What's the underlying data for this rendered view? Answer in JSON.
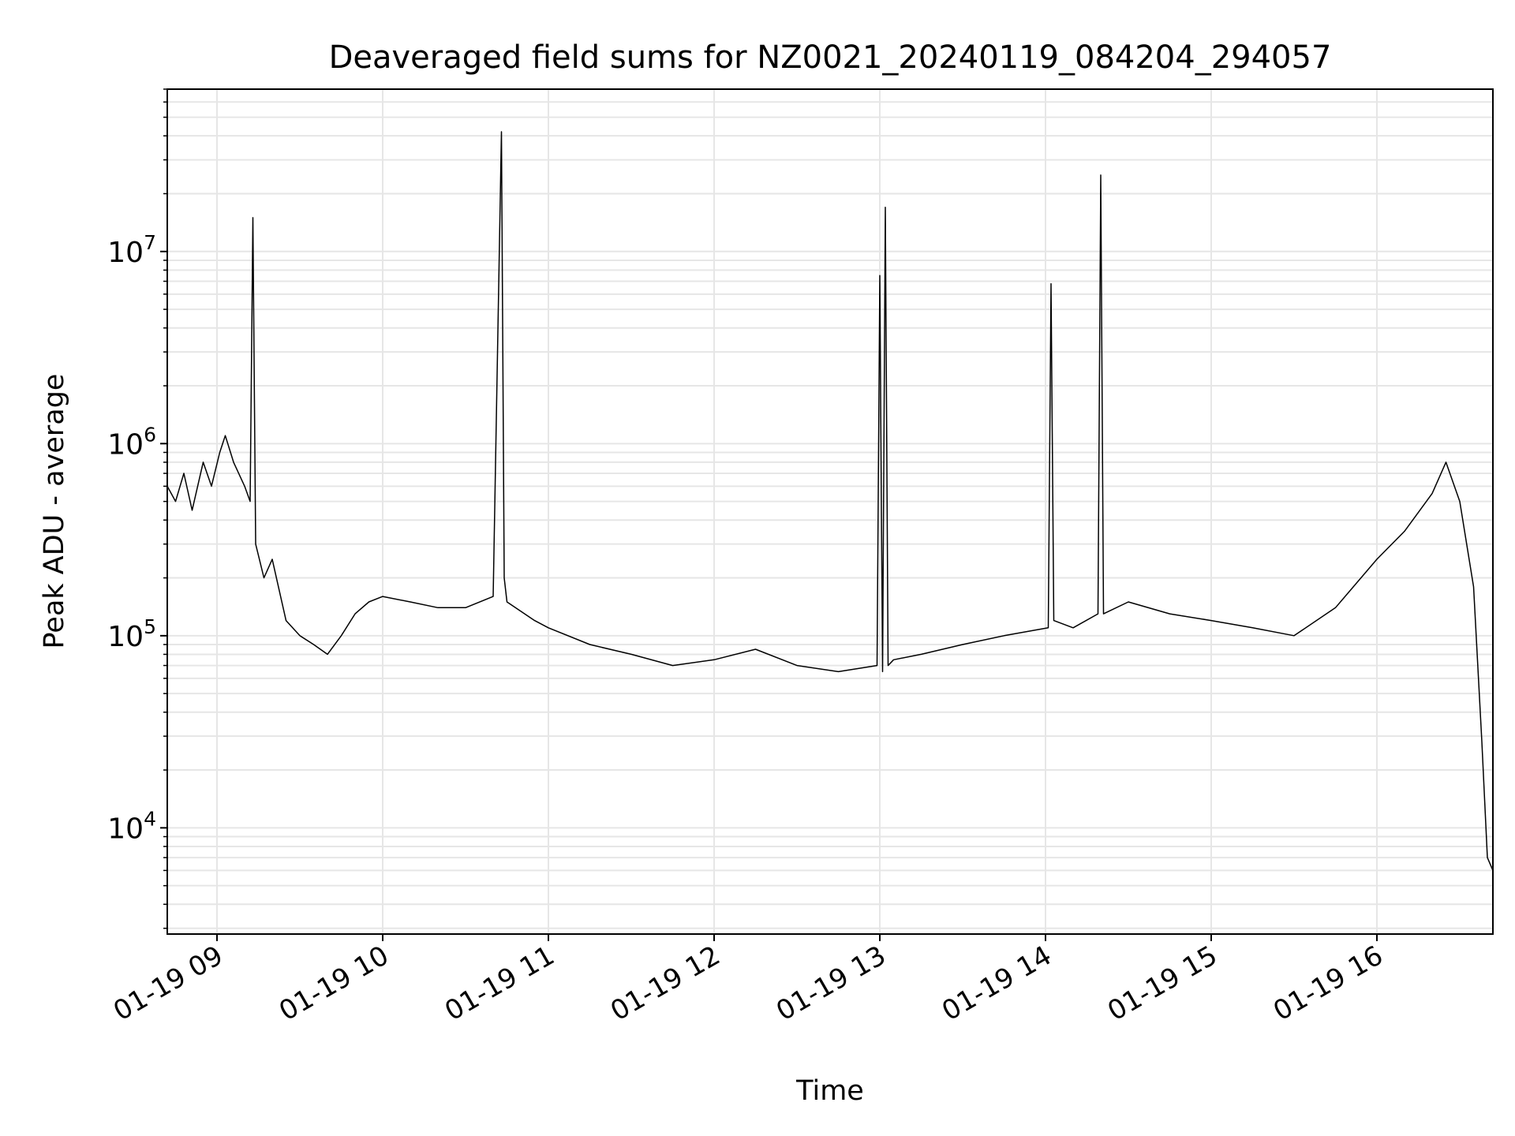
{
  "chart_data": {
    "type": "line",
    "title": "Deaveraged field sums for NZ0021_20240119_084204_294057",
    "xlabel": "Time",
    "ylabel": "Peak ADU - average",
    "yscale": "log",
    "xlim": [
      "2024-01-19 08:42",
      "2024-01-19 16:42"
    ],
    "ylim": [
      2800,
      70000000
    ],
    "grid": true,
    "line_color": "#000000",
    "grid_color": "#e6e6e6",
    "x_ticks": [
      {
        "value": "2024-01-19 09:00",
        "label": "01-19 09"
      },
      {
        "value": "2024-01-19 10:00",
        "label": "01-19 10"
      },
      {
        "value": "2024-01-19 11:00",
        "label": "01-19 11"
      },
      {
        "value": "2024-01-19 12:00",
        "label": "01-19 12"
      },
      {
        "value": "2024-01-19 13:00",
        "label": "01-19 13"
      },
      {
        "value": "2024-01-19 14:00",
        "label": "01-19 14"
      },
      {
        "value": "2024-01-19 15:00",
        "label": "01-19 15"
      },
      {
        "value": "2024-01-19 16:00",
        "label": "01-19 16"
      }
    ],
    "y_ticks": [
      {
        "value": 10000,
        "base": "10",
        "exp": "4"
      },
      {
        "value": 100000,
        "base": "10",
        "exp": "5"
      },
      {
        "value": 1000000,
        "base": "10",
        "exp": "6"
      },
      {
        "value": 10000000,
        "base": "10",
        "exp": "7"
      }
    ],
    "series": [
      {
        "x": [
          "2024-01-19 08:42",
          "2024-01-19 08:45",
          "2024-01-19 08:48",
          "2024-01-19 08:51",
          "2024-01-19 08:55",
          "2024-01-19 08:58",
          "2024-01-19 09:01",
          "2024-01-19 09:03",
          "2024-01-19 09:06",
          "2024-01-19 09:10",
          "2024-01-19 09:12",
          "2024-01-19 09:13",
          "2024-01-19 09:14",
          "2024-01-19 09:17",
          "2024-01-19 09:20",
          "2024-01-19 09:25",
          "2024-01-19 09:30",
          "2024-01-19 09:35",
          "2024-01-19 09:40",
          "2024-01-19 09:45",
          "2024-01-19 09:50",
          "2024-01-19 09:55",
          "2024-01-19 10:00",
          "2024-01-19 10:10",
          "2024-01-19 10:20",
          "2024-01-19 10:30",
          "2024-01-19 10:40",
          "2024-01-19 10:43",
          "2024-01-19 10:44",
          "2024-01-19 10:45",
          "2024-01-19 10:55",
          "2024-01-19 11:00",
          "2024-01-19 11:15",
          "2024-01-19 11:30",
          "2024-01-19 11:45",
          "2024-01-19 12:00",
          "2024-01-19 12:15",
          "2024-01-19 12:30",
          "2024-01-19 12:45",
          "2024-01-19 12:59",
          "2024-01-19 13:00",
          "2024-01-19 13:01",
          "2024-01-19 13:02",
          "2024-01-19 13:03",
          "2024-01-19 13:05",
          "2024-01-19 13:15",
          "2024-01-19 13:30",
          "2024-01-19 13:45",
          "2024-01-19 14:01",
          "2024-01-19 14:02",
          "2024-01-19 14:03",
          "2024-01-19 14:10",
          "2024-01-19 14:19",
          "2024-01-19 14:20",
          "2024-01-19 14:21",
          "2024-01-19 14:30",
          "2024-01-19 14:45",
          "2024-01-19 15:00",
          "2024-01-19 15:15",
          "2024-01-19 15:30",
          "2024-01-19 15:45",
          "2024-01-19 16:00",
          "2024-01-19 16:10",
          "2024-01-19 16:20",
          "2024-01-19 16:25",
          "2024-01-19 16:30",
          "2024-01-19 16:35",
          "2024-01-19 16:38",
          "2024-01-19 16:40",
          "2024-01-19 16:42"
        ],
        "y": [
          600000,
          500000,
          700000,
          450000,
          800000,
          600000,
          900000,
          1100000,
          800000,
          600000,
          500000,
          15000000,
          300000,
          200000,
          250000,
          120000,
          100000,
          90000,
          80000,
          100000,
          130000,
          150000,
          160000,
          150000,
          140000,
          140000,
          160000,
          42000000,
          200000,
          150000,
          120000,
          110000,
          90000,
          80000,
          70000,
          75000,
          85000,
          70000,
          65000,
          70000,
          7500000,
          65000,
          17000000,
          70000,
          75000,
          80000,
          90000,
          100000,
          110000,
          6800000,
          120000,
          110000,
          130000,
          25000000,
          130000,
          150000,
          130000,
          120000,
          110000,
          100000,
          140000,
          250000,
          350000,
          550000,
          800000,
          500000,
          180000,
          28000,
          7000,
          6000
        ]
      }
    ]
  }
}
